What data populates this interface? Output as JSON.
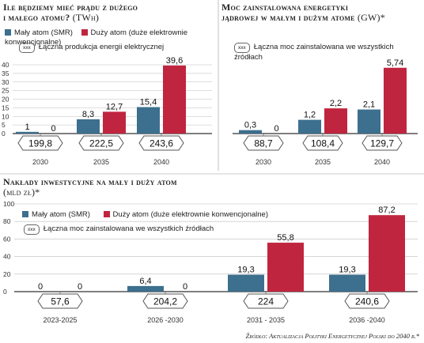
{
  "colors": {
    "smr": "#3d6f8e",
    "large": "#c0253f",
    "axis": "#333333",
    "grid": "#bdbdbd"
  },
  "legend_common": {
    "smr": "Mały atom (SMR)",
    "large": "Duży atom (duże elektrownie konwencjonalne)",
    "badge": "xxx"
  },
  "source": "Źródło: Aktualizacja Polityki Energetycznej Polski do 2040 r.*",
  "chart_data": [
    {
      "type": "bar",
      "title_line1": "Ile będziemy mieć prądu z dużego",
      "title_line2": "i małego atomu?",
      "unit": "(TWh)",
      "total_label": "Łączna produkcja energii elektrycznej",
      "categories": [
        "2030",
        "2035",
        "2040"
      ],
      "series": [
        {
          "name": "Mały atom (SMR)",
          "values": [
            1,
            8.3,
            15.4
          ],
          "labels": [
            "1",
            "8,3",
            "15,4"
          ]
        },
        {
          "name": "Duży atom (duże elektrownie konwencjonalne)",
          "values": [
            0,
            12.7,
            39.6
          ],
          "labels": [
            "0",
            "12,7",
            "39,6"
          ]
        }
      ],
      "totals": [
        "199,8",
        "222,5",
        "243,6"
      ],
      "yticks": [
        "0",
        "5",
        "10",
        "15",
        "20",
        "25",
        "30",
        "35",
        "40"
      ],
      "ylim": [
        0,
        40
      ]
    },
    {
      "type": "bar",
      "title_line1": "Moc zainstalowana energetyki",
      "title_line2": "jądrowej w małym i dużym atome",
      "unit": "(GW)*",
      "total_label": "Łączna moc zainstalowana we wszystkich źródłach",
      "categories": [
        "2030",
        "2035",
        "2040"
      ],
      "series": [
        {
          "name": "Mały atom (SMR)",
          "values": [
            0.3,
            1.2,
            2.1
          ],
          "labels": [
            "0,3",
            "1,2",
            "2,1"
          ]
        },
        {
          "name": "Duży atom (duże elektrownie konwencjonalne)",
          "values": [
            0,
            2.2,
            5.74
          ],
          "labels": [
            "0",
            "2,2",
            "5,74"
          ]
        }
      ],
      "totals": [
        "88,7",
        "108,4",
        "129,7"
      ],
      "ylim": [
        0,
        6
      ]
    },
    {
      "type": "bar",
      "title_line1": "Nakłady inwestycyjne na mały i duży atom",
      "unit": "(mld zł)*",
      "total_label": "Łączna moc zainstalowana we wszystkich źródłach",
      "categories": [
        "2023-2025",
        "2026 -2030",
        "2031 - 2035",
        "2036 -2040"
      ],
      "series": [
        {
          "name": "Mały atom (SMR)",
          "values": [
            0,
            6.4,
            19.3,
            19.3
          ],
          "labels": [
            "0",
            "6,4",
            "19,3",
            "19,3"
          ]
        },
        {
          "name": "Duży atom (duże elektrownie konwencjonalne)",
          "values": [
            0,
            0,
            55.8,
            87.2
          ],
          "labels": [
            "0",
            "0",
            "55,8",
            "87,2"
          ]
        }
      ],
      "totals": [
        "57,6",
        "204,2",
        "224",
        "240,6"
      ],
      "yticks": [
        "0",
        "20",
        "40",
        "60",
        "80",
        "100"
      ],
      "ylim": [
        0,
        100
      ]
    }
  ]
}
